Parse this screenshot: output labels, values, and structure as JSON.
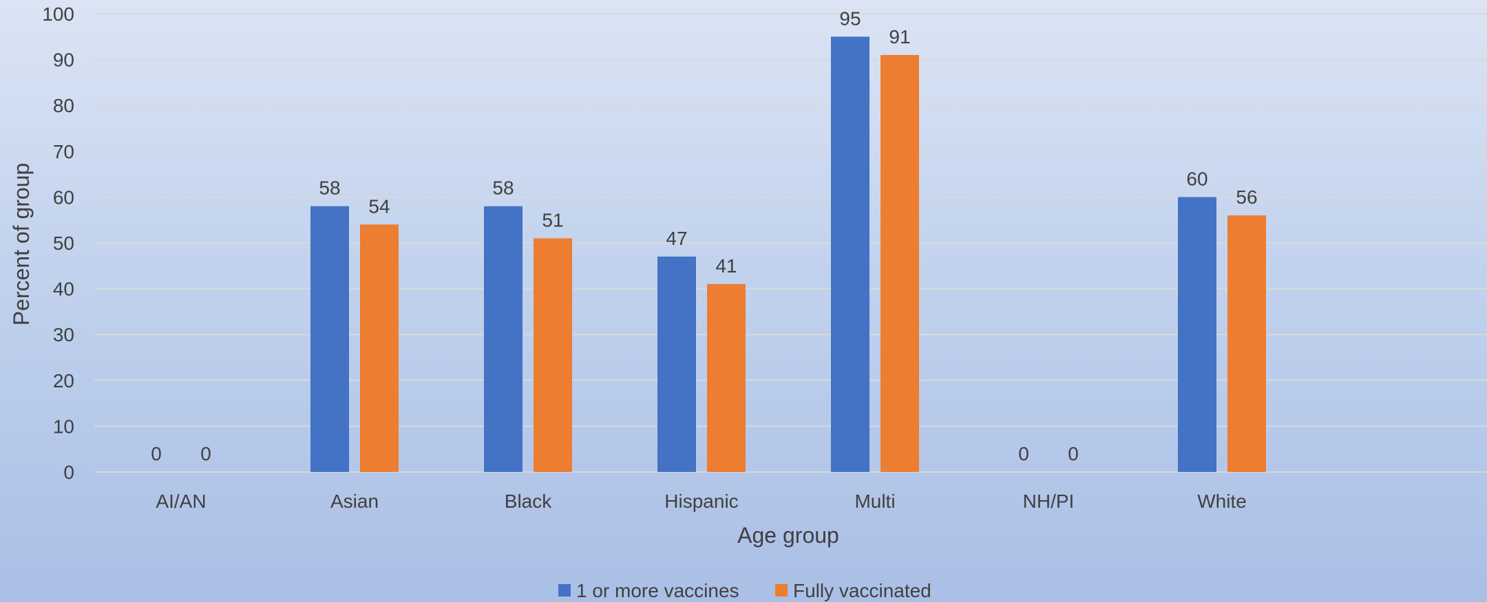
{
  "chart_data": {
    "type": "bar",
    "title": "",
    "xlabel": "Age group",
    "ylabel": "Percent of group",
    "ylim": [
      0,
      100
    ],
    "yticks": [
      0,
      10,
      20,
      30,
      40,
      50,
      60,
      70,
      80,
      90,
      100
    ],
    "grid": true,
    "legend_position": "bottom",
    "categories": [
      "AI/AN",
      "Asian",
      "Black",
      "Hispanic",
      "Multi",
      "NH/PI",
      "White"
    ],
    "series": [
      {
        "name": "1 or more vaccines",
        "color": "#4472c4",
        "values": [
          0,
          58,
          58,
          47,
          95,
          0,
          60
        ]
      },
      {
        "name": "Fully vaccinated",
        "color": "#ed7d31",
        "values": [
          0,
          54,
          51,
          41,
          91,
          0,
          56
        ]
      }
    ]
  }
}
